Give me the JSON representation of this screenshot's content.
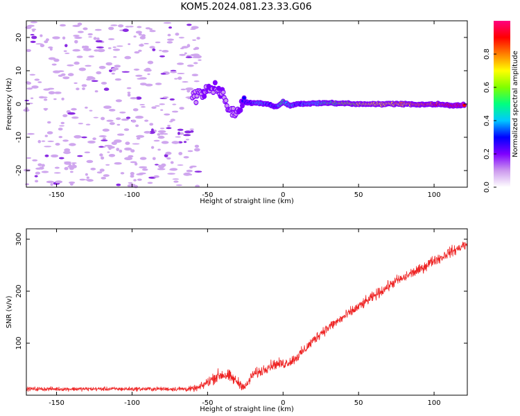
{
  "figure": {
    "title": "KOM5.2024.081.23.33.G06"
  },
  "chart_data": [
    {
      "type": "heatmap",
      "xlabel": "Height of straight line (km)",
      "ylabel": "Frequency (Hz)",
      "xlim": [
        -170,
        122
      ],
      "ylim": [
        -25,
        25
      ],
      "xticks": [
        -150,
        -100,
        -50,
        0,
        50,
        100
      ],
      "yticks": [
        -20,
        -10,
        0,
        10,
        20
      ],
      "colorbar": {
        "label": "Normalized spectral amplitude",
        "range": [
          0,
          1
        ],
        "ticks": [
          0.0,
          0.2,
          0.4,
          0.6,
          0.8
        ],
        "colormap": [
          "#ffffff",
          "#cc99ee",
          "#7f00ff",
          "#0000ff",
          "#00c8ff",
          "#00ff80",
          "#7fff00",
          "#ffff00",
          "#ff8000",
          "#ff0000",
          "#ff0080"
        ]
      },
      "noise_region": {
        "x_range": [
          -170,
          -55
        ],
        "freq_range": [
          -25,
          25
        ],
        "amplitude": 0.05
      },
      "signal_track": {
        "x": [
          -60,
          -55,
          -50,
          -45,
          -40,
          -35,
          -30,
          -25,
          -20,
          -15,
          -10,
          -5,
          0,
          5,
          10,
          20,
          30,
          40,
          50,
          60,
          70,
          80,
          90,
          100,
          110,
          120
        ],
        "freq": [
          2,
          3,
          4,
          5,
          3,
          -3,
          -2,
          0.5,
          0.3,
          0.2,
          0.0,
          -1,
          0.5,
          -0.5,
          0.0,
          0.2,
          0.3,
          0.2,
          0.0,
          0.0,
          0.0,
          0.0,
          -0.2,
          0.0,
          -0.4,
          -0.3
        ],
        "amplitude": [
          0.08,
          0.12,
          0.15,
          0.15,
          0.12,
          0.1,
          0.1,
          0.3,
          0.35,
          0.4,
          0.35,
          0.3,
          0.5,
          0.35,
          0.35,
          0.4,
          0.5,
          0.6,
          0.65,
          0.7,
          0.7,
          0.75,
          0.8,
          0.85,
          0.9,
          0.95
        ]
      }
    },
    {
      "type": "line",
      "xlabel": "Height of straight line (km)",
      "ylabel": "SNR (v/v)",
      "xlim": [
        -170,
        122
      ],
      "ylim": [
        0,
        320
      ],
      "xticks": [
        -150,
        -100,
        -50,
        0,
        50,
        100
      ],
      "yticks": [
        100,
        200,
        300
      ],
      "color": "#ee2222",
      "series": [
        {
          "x": [
            -170,
            -150,
            -125,
            -100,
            -75,
            -60,
            -55,
            -50,
            -45,
            -40,
            -35,
            -30,
            -25,
            -20,
            -15,
            -10,
            -5,
            0,
            5,
            10,
            15,
            20,
            25,
            30,
            35,
            40,
            45,
            50,
            55,
            60,
            65,
            70,
            75,
            80,
            85,
            90,
            95,
            100,
            105,
            110,
            115,
            120,
            122
          ],
          "values": [
            12,
            12,
            12,
            12,
            12,
            12,
            15,
            25,
            35,
            40,
            35,
            25,
            15,
            40,
            45,
            55,
            60,
            60,
            65,
            75,
            90,
            105,
            120,
            130,
            140,
            150,
            160,
            170,
            180,
            190,
            200,
            210,
            220,
            225,
            235,
            240,
            250,
            260,
            265,
            275,
            280,
            290,
            285
          ],
          "noise_amplitude": [
            6,
            6,
            6,
            6,
            6,
            8,
            10,
            15,
            18,
            20,
            18,
            15,
            12,
            15,
            15,
            15,
            15,
            15,
            15,
            15,
            15,
            15,
            15,
            15,
            15,
            15,
            15,
            15,
            15,
            15,
            15,
            15,
            15,
            15,
            15,
            15,
            15,
            15,
            15,
            15,
            15,
            15,
            15
          ]
        }
      ]
    }
  ]
}
